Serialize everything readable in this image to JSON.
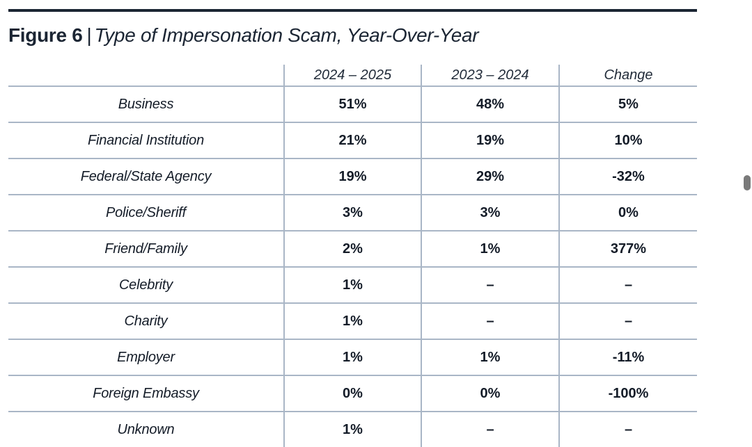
{
  "figure": {
    "number": "Figure 6",
    "separator": "|",
    "caption": "Type of Impersonation Scam, Year-Over-Year"
  },
  "table": {
    "columns": [
      "",
      "2024 – 2025",
      "2023 – 2024",
      "Change"
    ],
    "rows": [
      {
        "type": "Business",
        "y2025": "51%",
        "y2024": "48%",
        "change": "5%"
      },
      {
        "type": "Financial Institution",
        "y2025": "21%",
        "y2024": "19%",
        "change": "10%"
      },
      {
        "type": "Federal/State Agency",
        "y2025": "19%",
        "y2024": "29%",
        "change": "-32%"
      },
      {
        "type": "Police/Sheriff",
        "y2025": "3%",
        "y2024": "3%",
        "change": "0%"
      },
      {
        "type": "Friend/Family",
        "y2025": "2%",
        "y2024": "1%",
        "change": "377%"
      },
      {
        "type": "Celebrity",
        "y2025": "1%",
        "y2024": "–",
        "change": "–"
      },
      {
        "type": "Charity",
        "y2025": "1%",
        "y2024": "–",
        "change": "–"
      },
      {
        "type": "Employer",
        "y2025": "1%",
        "y2024": "1%",
        "change": "-11%"
      },
      {
        "type": "Foreign Embassy",
        "y2025": "0%",
        "y2024": "0%",
        "change": "-100%"
      },
      {
        "type": "Unknown",
        "y2025": "1%",
        "y2024": "–",
        "change": "–"
      }
    ]
  }
}
